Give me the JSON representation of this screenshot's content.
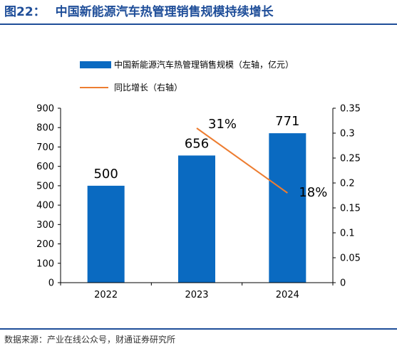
{
  "header": {
    "figure_number": "图22：",
    "title": "中国新能源汽车热管理销售规模持续增长"
  },
  "footer": {
    "source": "数据来源：产业在线公众号，财通证券研究所"
  },
  "colors": {
    "title": "#1f4e99",
    "bar": "#0a6ac1",
    "line": "#ed7d31",
    "axis": "#000000"
  },
  "chart_data": {
    "type": "bar",
    "categories": [
      "2022",
      "2023",
      "2024"
    ],
    "series": [
      {
        "name": "中国新能源汽车热管理销售规模（左轴，亿元）",
        "type": "bar",
        "axis": "left",
        "values": [
          500,
          656,
          771
        ],
        "labels": [
          "500",
          "656",
          "771"
        ]
      },
      {
        "name": "同比增长（右轴）",
        "type": "line",
        "axis": "right",
        "values": [
          null,
          0.31,
          0.18
        ],
        "labels": [
          null,
          "31%",
          "18%"
        ]
      }
    ],
    "y_left": {
      "lim": [
        0,
        900
      ],
      "ticks": [
        "0",
        "100",
        "200",
        "300",
        "400",
        "500",
        "600",
        "700",
        "800",
        "900"
      ]
    },
    "y_right": {
      "lim": [
        0,
        0.35
      ],
      "ticks": [
        "0",
        "0.05",
        "0.1",
        "0.15",
        "0.2",
        "0.25",
        "0.3",
        "0.35"
      ]
    },
    "legend_position": "top",
    "grid": false
  }
}
